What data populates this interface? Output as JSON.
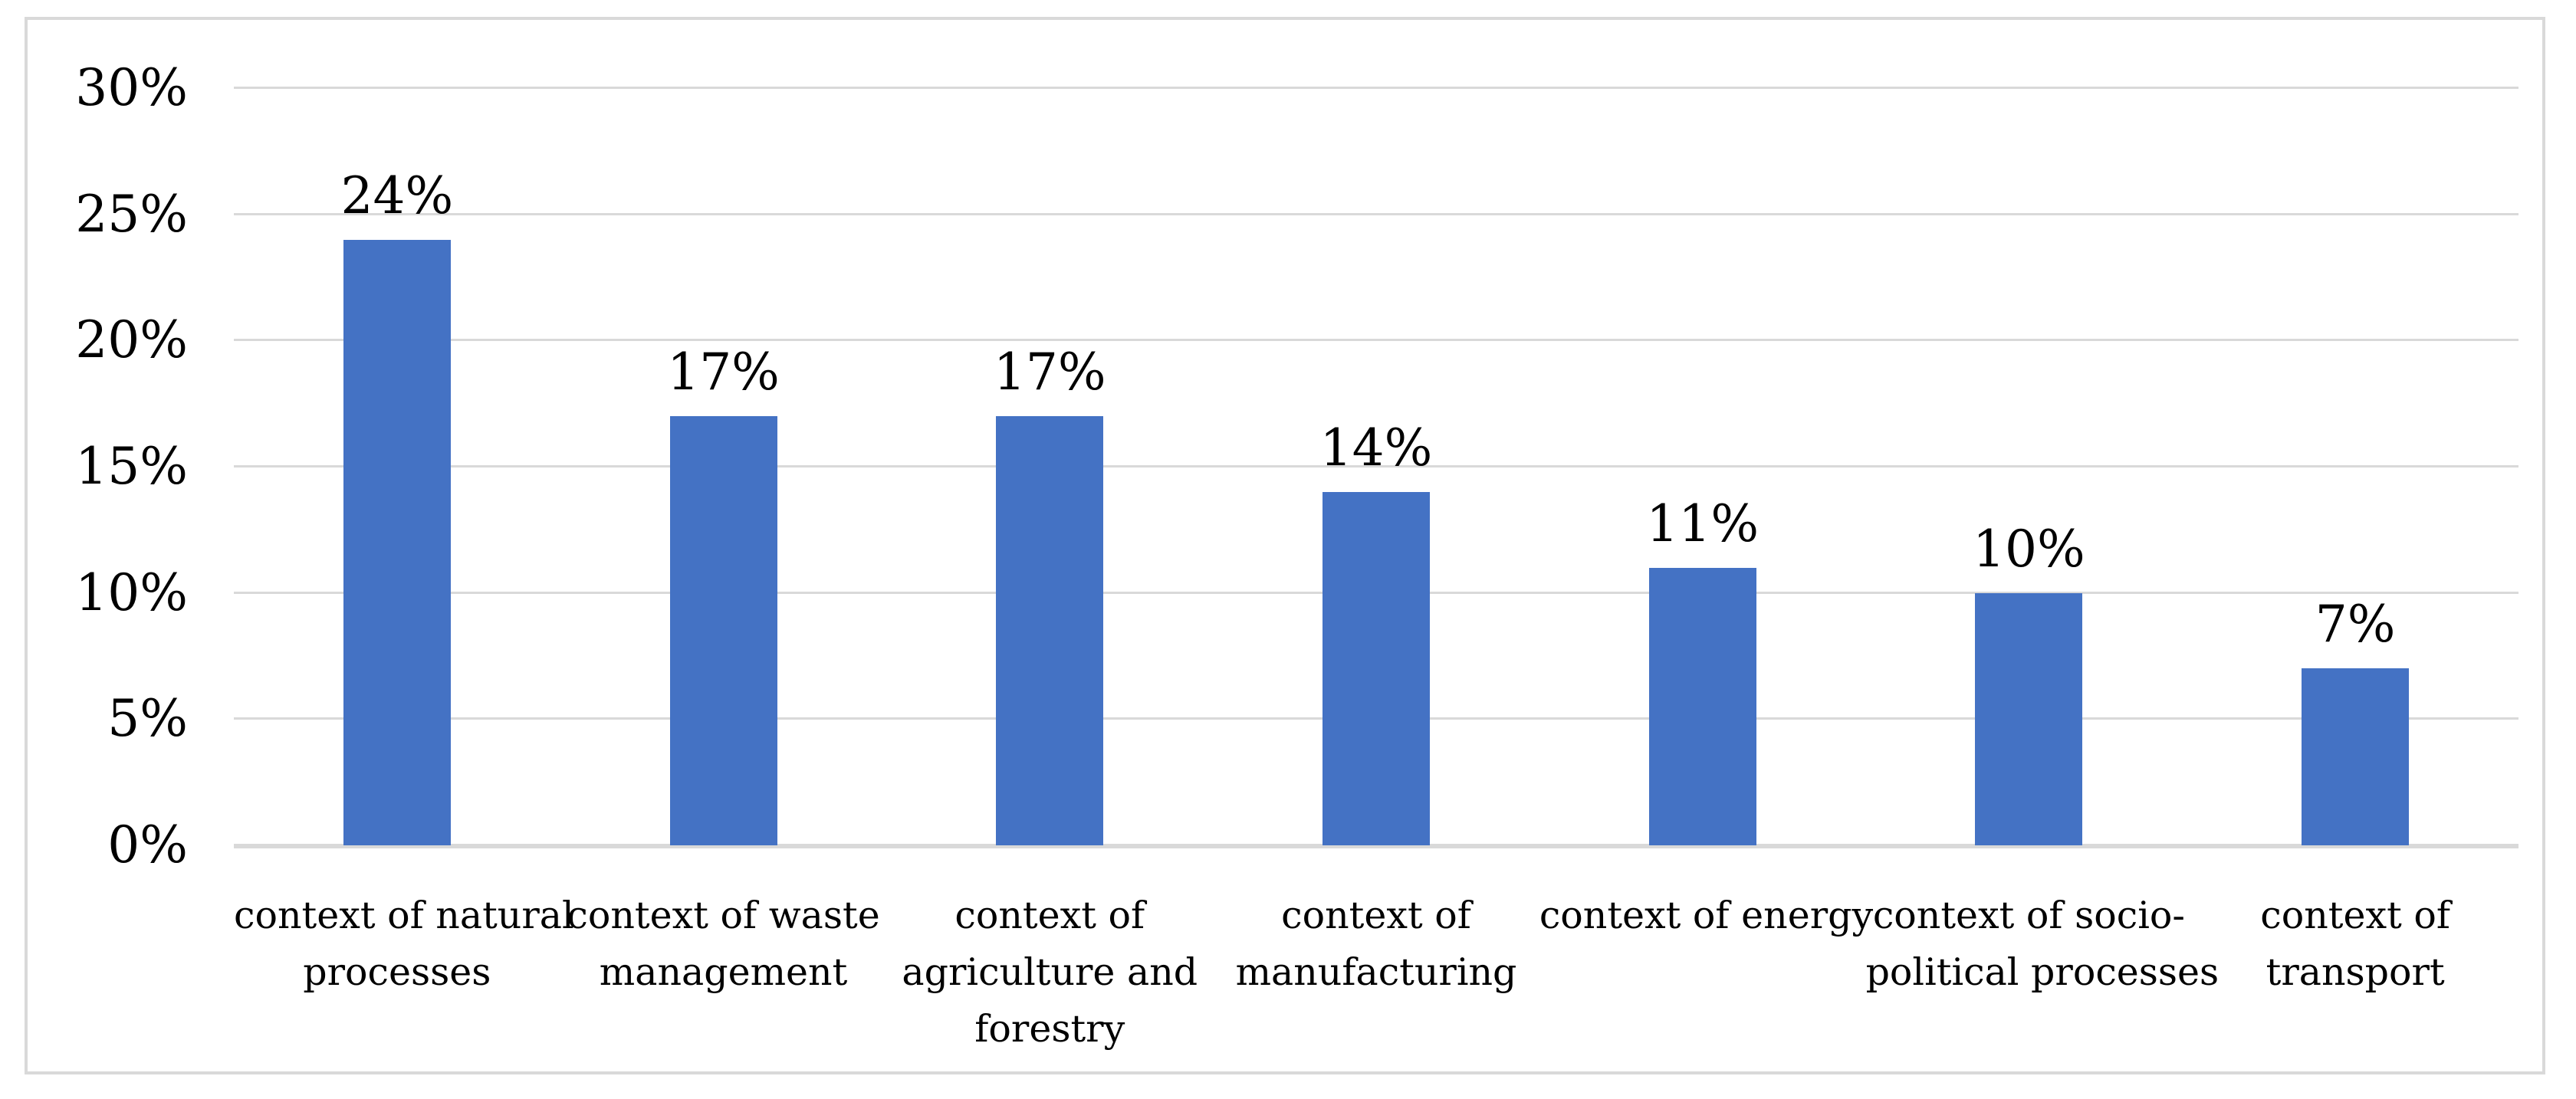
{
  "figure": {
    "background": "#FFFFFF",
    "border_color": "#D9D9D9"
  },
  "chart_data": {
    "type": "bar",
    "title": "",
    "xlabel": "",
    "ylabel": "",
    "categories": [
      "context of natural processes",
      "context of waste management",
      "context of agriculture and forestry",
      "context of manufacturing",
      "context of energy",
      "context of socio-political processes",
      "context of transport"
    ],
    "category_lines": [
      [
        "context of natural",
        "processes"
      ],
      [
        "context of waste",
        "management"
      ],
      [
        "context of",
        "agriculture and",
        "forestry"
      ],
      [
        "context of",
        "manufacturing"
      ],
      [
        "context of energy"
      ],
      [
        "context of socio-",
        "political processes"
      ],
      [
        "context of",
        "transport"
      ]
    ],
    "values": [
      24,
      17,
      17,
      14,
      11,
      10,
      7
    ],
    "data_labels": [
      "24%",
      "17%",
      "17%",
      "14%",
      "11%",
      "10%",
      "7%"
    ],
    "ylim": [
      0,
      30
    ],
    "ytick_step": 5,
    "ytick_labels": [
      "0%",
      "5%",
      "10%",
      "15%",
      "20%",
      "25%",
      "30%"
    ],
    "grid": true,
    "legend": false,
    "bar_color": "#4472C4",
    "gridline_color": "#D9D9D9",
    "axis_line_color": "#D9D9D9",
    "text_color": "#000000"
  }
}
